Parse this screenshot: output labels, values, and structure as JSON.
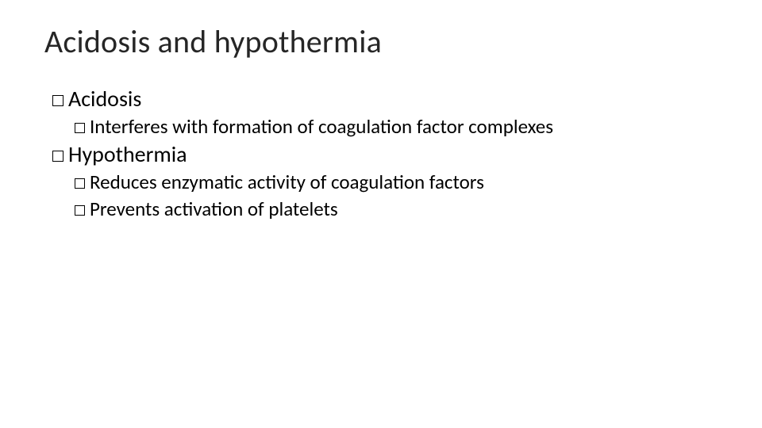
{
  "slide": {
    "title": "Acidosis and hypothermia",
    "background_color": "#ffffff",
    "title_color": "#262626",
    "text_color": "#000000",
    "title_fontsize": 40,
    "body_fontsize_lvl1": 28,
    "body_fontsize_lvl2": 25,
    "bullet_style": "hollow-square",
    "bullet_border_color": "#000000",
    "items": [
      {
        "level": 1,
        "text": "Acidosis",
        "children": [
          {
            "level": 2,
            "text": "Interferes with formation of coagulation factor complexes"
          }
        ]
      },
      {
        "level": 1,
        "text": "Hypothermia",
        "children": [
          {
            "level": 2,
            "text": "Reduces enzymatic activity of coagulation factors"
          },
          {
            "level": 2,
            "text": "Prevents activation of platelets"
          }
        ]
      }
    ]
  }
}
